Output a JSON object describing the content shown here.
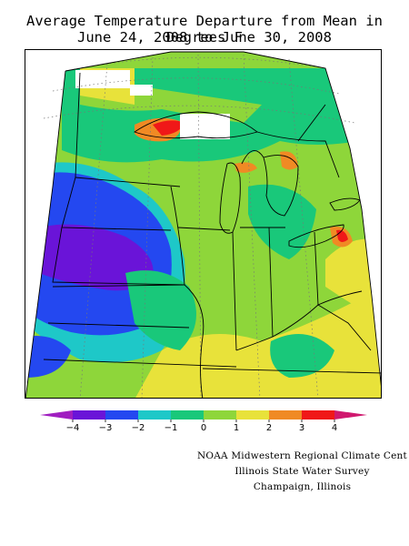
{
  "title": {
    "line1": "Average Temperature Departure from Mean in Degrees F",
    "line2": "June 24, 2008 to June 30, 2008"
  },
  "legend": {
    "ticks": [
      "−4",
      "−3",
      "−2",
      "−1",
      "0",
      "1",
      "2",
      "3",
      "4"
    ],
    "colors": {
      "below_-4": "#a01ec0",
      "-4_to_-3": "#6a14d8",
      "-3_to_-2": "#2448f0",
      "-2_to_-1": "#1ec8c8",
      "-1_to_0": "#19c87a",
      "0_to_1": "#8ed63a",
      "1_to_2": "#e8e23a",
      "2_to_3": "#f08a24",
      "3_to_4": "#f01818",
      "above_4": "#d0186e"
    }
  },
  "credits": {
    "line1": "NOAA Midwestern Regional Climate Cent",
    "line2": "Illinois State Water Survey",
    "line3": "Champaign, Illinois"
  }
}
